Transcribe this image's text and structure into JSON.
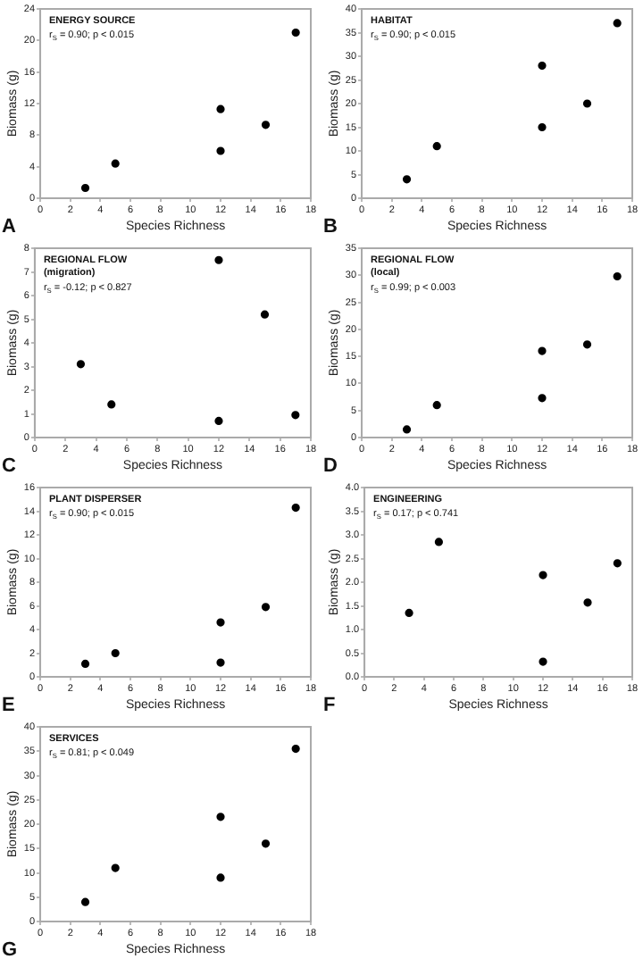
{
  "chart_data": [
    {
      "type": "scatter",
      "title": "ENERGY SOURCE",
      "annotations": [
        "A",
        "r$_{S}$ = 0.90; p < 0.015"
      ],
      "xlabel": "Species Richness",
      "ylabel": "Biomass (g)",
      "x": [
        3,
        5,
        12,
        12,
        15,
        17
      ],
      "values": [
        1.3,
        4.4,
        11.3,
        6.0,
        9.3,
        21.0
      ],
      "color": "#000000",
      "marker": "circle",
      "xlim": [
        0,
        18
      ],
      "xticks": [
        0,
        2,
        4,
        6,
        8,
        10,
        12,
        14,
        16,
        18
      ],
      "ylim": [
        0,
        24
      ],
      "yticks": [
        0,
        4,
        8,
        12,
        16,
        20,
        24
      ],
      "grid": false,
      "legend": false
    },
    {
      "type": "scatter",
      "title": "HABITAT",
      "annotations": [
        "B",
        "r$_{S}$ = 0.90; p < 0.015"
      ],
      "xlabel": "Species Richness",
      "ylabel": "Biomass (g)",
      "x": [
        3,
        5,
        12,
        12,
        15,
        17
      ],
      "values": [
        4,
        11,
        28,
        15,
        20,
        37
      ],
      "color": "#000000",
      "marker": "circle",
      "xlim": [
        0,
        18
      ],
      "xticks": [
        0,
        2,
        4,
        6,
        8,
        10,
        12,
        14,
        16,
        18
      ],
      "ylim": [
        0,
        40
      ],
      "yticks": [
        0,
        5,
        10,
        15,
        20,
        25,
        30,
        35,
        40
      ],
      "grid": false,
      "legend": false
    },
    {
      "type": "scatter",
      "title": "REGIONAL FLOW",
      "subtitle": "(migration)",
      "annotations": [
        "C",
        "r$_{S}$ = -0.12; p < 0.827"
      ],
      "xlabel": "Species Richness",
      "ylabel": "Biomass (g)",
      "x": [
        3,
        5,
        12,
        12,
        15,
        17
      ],
      "values": [
        3.1,
        1.4,
        7.5,
        0.7,
        5.2,
        0.95
      ],
      "color": "#000000",
      "marker": "circle",
      "xlim": [
        0,
        18
      ],
      "xticks": [
        0,
        2,
        4,
        6,
        8,
        10,
        12,
        14,
        16,
        18
      ],
      "ylim": [
        0,
        8
      ],
      "yticks": [
        0,
        1,
        2,
        3,
        4,
        5,
        6,
        7,
        8
      ],
      "grid": false,
      "legend": false
    },
    {
      "type": "scatter",
      "title": "REGIONAL FLOW",
      "subtitle": "(local)",
      "annotations": [
        "D",
        "r$_{S}$ = 0.99; p < 0.003"
      ],
      "xlabel": "Species Richness",
      "ylabel": "Biomass (g)",
      "x": [
        3,
        5,
        12,
        12,
        15,
        17
      ],
      "values": [
        1.5,
        6,
        16,
        7.3,
        17.2,
        29.8
      ],
      "color": "#000000",
      "marker": "circle",
      "xlim": [
        0,
        18
      ],
      "xticks": [
        0,
        2,
        4,
        6,
        8,
        10,
        12,
        14,
        16,
        18
      ],
      "ylim": [
        0,
        35
      ],
      "yticks": [
        0,
        5,
        10,
        15,
        20,
        25,
        30,
        35
      ],
      "grid": false,
      "legend": false
    },
    {
      "type": "scatter",
      "title": "PLANT DISPERSER",
      "annotations": [
        "E",
        "r$_{S}$ = 0.90; p < 0.015"
      ],
      "xlabel": "Species Richness",
      "ylabel": "Biomass (g)",
      "x": [
        3,
        5,
        12,
        12,
        15,
        17
      ],
      "values": [
        1.1,
        2.0,
        4.6,
        1.2,
        5.9,
        14.3
      ],
      "color": "#000000",
      "marker": "circle",
      "xlim": [
        0,
        18
      ],
      "xticks": [
        0,
        2,
        4,
        6,
        8,
        10,
        12,
        14,
        16,
        18
      ],
      "ylim": [
        0,
        16
      ],
      "yticks": [
        0,
        2,
        4,
        6,
        8,
        10,
        12,
        14,
        16
      ],
      "grid": false,
      "legend": false
    },
    {
      "type": "scatter",
      "title": "ENGINEERING",
      "annotations": [
        "F",
        "r$_{S}$ = 0.17; p < 0.741"
      ],
      "xlabel": "Species Richness",
      "ylabel": "Biomass (g)",
      "x": [
        3,
        5,
        12,
        12,
        15,
        17
      ],
      "values": [
        1.35,
        2.85,
        2.15,
        0.32,
        1.57,
        2.4
      ],
      "color": "#000000",
      "marker": "circle",
      "xlim": [
        0,
        18
      ],
      "xticks": [
        0,
        2,
        4,
        6,
        8,
        10,
        12,
        14,
        16,
        18
      ],
      "ylim": [
        0,
        4
      ],
      "yticks": [
        {
          "value": 0,
          "label": "0.0"
        },
        {
          "value": 0.5,
          "label": "0.5"
        },
        {
          "value": 1,
          "label": "1.0"
        },
        {
          "value": 1.5,
          "label": "1.5"
        },
        {
          "value": 2,
          "label": "2.0"
        },
        {
          "value": 2.5,
          "label": "2.5"
        },
        {
          "value": 3,
          "label": "3.0"
        },
        {
          "value": 3.5,
          "label": "3.5"
        },
        {
          "value": 4,
          "label": "4.0"
        }
      ],
      "grid": false,
      "legend": false
    },
    {
      "type": "scatter",
      "title": "SERVICES",
      "annotations": [
        "G",
        "r$_{S}$ = 0.81; p < 0.049"
      ],
      "xlabel": "Species Richness",
      "ylabel": "Biomass (g)",
      "x": [
        3,
        5,
        12,
        12,
        15,
        17
      ],
      "values": [
        4,
        11,
        21.5,
        9,
        16,
        35.5
      ],
      "color": "#000000",
      "marker": "circle",
      "xlim": [
        0,
        18
      ],
      "xticks": [
        0,
        2,
        4,
        6,
        8,
        10,
        12,
        14,
        16,
        18
      ],
      "ylim": [
        0,
        40
      ],
      "yticks": [
        0,
        5,
        10,
        15,
        20,
        25,
        30,
        35,
        40
      ],
      "grid": false,
      "legend": false
    }
  ]
}
